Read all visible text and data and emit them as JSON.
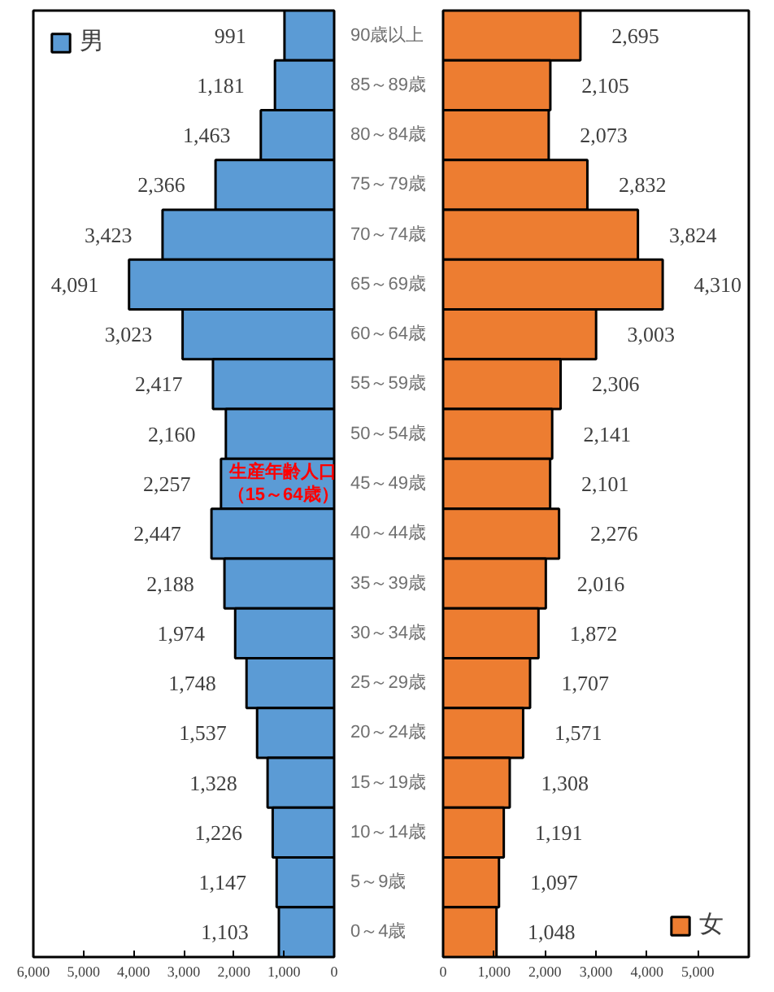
{
  "chart_data": [
    {
      "type": "bar",
      "orientation": "horizontal",
      "categories": [
        "90歳以上",
        "85～89歳",
        "80～84歳",
        "75～79歳",
        "70～74歳",
        "65～69歳",
        "60～64歳",
        "55～59歳",
        "50～54歳",
        "45～49歳",
        "40～44歳",
        "35～39歳",
        "30～34歳",
        "25～29歳",
        "20～24歳",
        "15～19歳",
        "10～14歳",
        "5～9歳",
        "0～4歳"
      ],
      "series": [
        {
          "name": "男",
          "color": "#5b9bd5",
          "values": [
            991,
            1181,
            1463,
            2366,
            3423,
            4091,
            3023,
            2417,
            2160,
            2257,
            2447,
            2188,
            1974,
            1748,
            1537,
            1328,
            1226,
            1147,
            1103
          ],
          "value_labels": [
            "991",
            "1,181",
            "1,463",
            "2,366",
            "3,423",
            "4,091",
            "3,023",
            "2,417",
            "2,160",
            "2,257",
            "2,447",
            "2,188",
            "1,974",
            "1,748",
            "1,537",
            "1,328",
            "1,226",
            "1,147",
            "1,103"
          ]
        }
      ],
      "xlim": [
        6000,
        0
      ],
      "xticks": [
        {
          "value": 6000,
          "label": "6,000"
        },
        {
          "value": 5000,
          "label": "5,000"
        },
        {
          "value": 4000,
          "label": "4,000"
        },
        {
          "value": 3000,
          "label": "3,000"
        },
        {
          "value": 2000,
          "label": "2,000"
        },
        {
          "value": 1000,
          "label": "1,000"
        },
        {
          "value": 0,
          "label": "0"
        }
      ],
      "legend": "top left",
      "annotations": [
        "生産年齢人口（15～64歳）"
      ]
    },
    {
      "type": "bar",
      "orientation": "horizontal",
      "categories": [
        null,
        null,
        null,
        null,
        null,
        null,
        null,
        null,
        null,
        null,
        null,
        null,
        null,
        null,
        null,
        null,
        null,
        null,
        null
      ],
      "series": [
        {
          "name": "女",
          "color": "#ed7d31",
          "values": [
            2695,
            2105,
            2073,
            2832,
            3824,
            4310,
            3003,
            2306,
            2141,
            2101,
            2276,
            2016,
            1872,
            1707,
            1571,
            1308,
            1191,
            1097,
            1048
          ],
          "value_labels": [
            "2,695",
            "2,105",
            "2,073",
            "2,832",
            "3,824",
            "4,310",
            "3,003",
            "2,306",
            "2,141",
            "2,101",
            "2,276",
            "2,016",
            "1,872",
            "1,707",
            "1,571",
            "1,308",
            "1,191",
            "1,097",
            "1,048"
          ]
        }
      ],
      "xlim": [
        0,
        6000
      ],
      "xticks": [
        0,
        {
          "value": 1000,
          "label": "1,000"
        },
        {
          "value": 2000,
          "label": "2,000"
        },
        {
          "value": 3000,
          "label": "3,000"
        },
        {
          "value": 4000,
          "label": "4,000"
        },
        {
          "value": 5000,
          "label": "5,000"
        }
      ],
      "legend": "bottom right",
      "tick_labels": "x"
    }
  ]
}
